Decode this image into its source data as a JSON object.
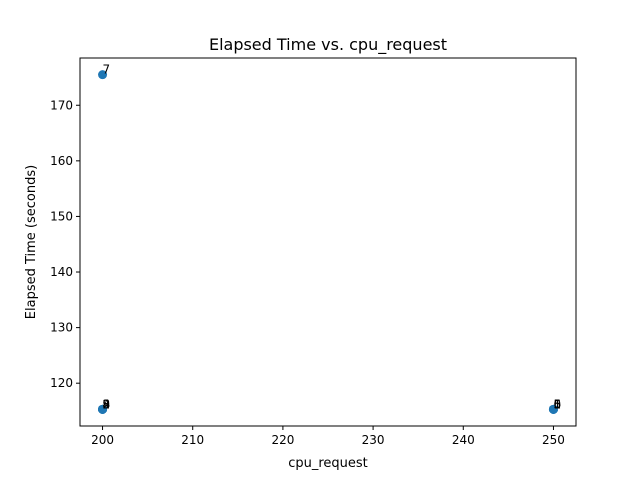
{
  "chart_data": {
    "type": "scatter",
    "title": "Elapsed Time vs. cpu_request",
    "xlabel": "cpu_request",
    "ylabel": "Elapsed Time (seconds)",
    "xlim": [
      197.5,
      252.5
    ],
    "ylim": [
      112.3,
      178.5
    ],
    "xticks": [
      200,
      210,
      220,
      230,
      240,
      250
    ],
    "yticks": [
      120,
      130,
      140,
      150,
      160,
      170
    ],
    "xtick_labels": [
      "200",
      "210",
      "220",
      "230",
      "240",
      "250"
    ],
    "ytick_labels": [
      "120",
      "130",
      "140",
      "150",
      "160",
      "170"
    ],
    "grid": false,
    "legend": "none",
    "marker_color": "#1f77b4",
    "points": [
      {
        "label": "7",
        "x": 200,
        "y": 175.5
      },
      {
        "label": "2",
        "x": 200,
        "y": 115.3
      },
      {
        "label": "3",
        "x": 200,
        "y": 115.3
      },
      {
        "label": "4",
        "x": 200,
        "y": 115.3
      },
      {
        "label": "8",
        "x": 200,
        "y": 115.3
      },
      {
        "label": "9",
        "x": 200,
        "y": 115.3
      },
      {
        "label": "1",
        "x": 250,
        "y": 115.3
      },
      {
        "label": "5",
        "x": 250,
        "y": 115.3
      },
      {
        "label": "6",
        "x": 250,
        "y": 115.3
      },
      {
        "label": "0",
        "x": 250,
        "y": 115.3
      }
    ]
  }
}
